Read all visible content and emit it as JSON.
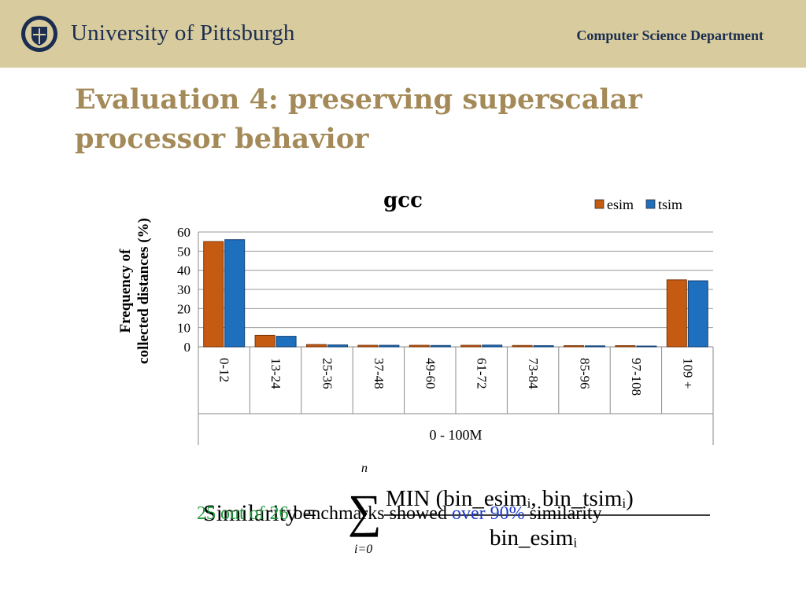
{
  "header": {
    "university": "University of Pittsburgh",
    "department": "Computer Science Department",
    "colors": {
      "band": "#d8cc9e",
      "navy": "#1b2d50",
      "title": "#a48a58"
    }
  },
  "slide": {
    "title": "Evaluation 4: preserving superscalar processor behavior"
  },
  "chart_data": {
    "type": "bar",
    "title": "gcc",
    "ylabel": "Frequency of collected distances (%)",
    "xlabel": "0 - 100M",
    "ylim": [
      0,
      60
    ],
    "yticks": [
      "0",
      "10",
      "20",
      "30",
      "40",
      "50",
      "60"
    ],
    "grid": true,
    "legend_position": "top-right",
    "categories": [
      "0-12",
      "13-24",
      "25-36",
      "37-48",
      "49-60",
      "61-72",
      "73-84",
      "85-96",
      "97-108",
      "109 +"
    ],
    "series": [
      {
        "name": "esim",
        "color": "#c55a11",
        "values": [
          55,
          6,
          1.2,
          0.8,
          0.8,
          0.8,
          0.7,
          0.6,
          0.6,
          35
        ]
      },
      {
        "name": "tsim",
        "color": "#1f6fbf",
        "values": [
          56,
          5.5,
          1,
          0.8,
          0.7,
          0.9,
          0.6,
          0.5,
          0.4,
          34.5
        ]
      }
    ]
  },
  "formula": {
    "lhs": "Similarity =",
    "sum_top": "n",
    "sum_bottom": "i=0",
    "sigma": "∑",
    "numerator": "MIN (bin_esimᵢ, bin_tsimᵢ)",
    "denominator": "bin_esimᵢ"
  },
  "note": {
    "count": "25 out of 26",
    "middle": " benchmarks showed ",
    "highlight": "over 90%",
    "end": " similarity"
  }
}
